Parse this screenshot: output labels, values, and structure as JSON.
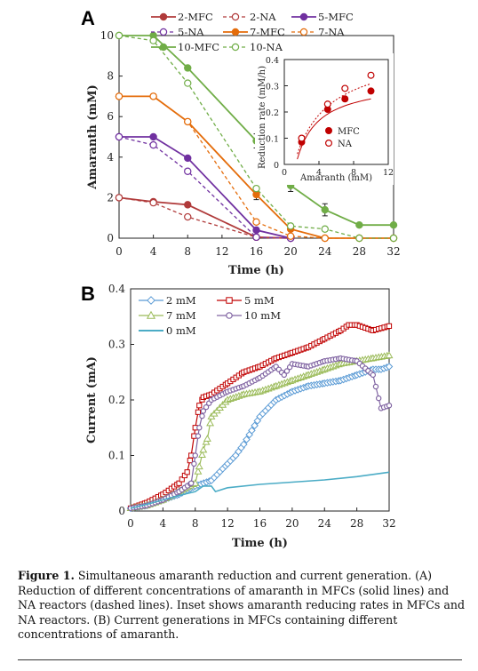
{
  "caption": {
    "label": "Figure 1.",
    "text": "Simultaneous amaranth reduction and current generation. (A) Reduction of different concentrations of amaranth in MFCs (solid lines) and NA reactors (dashed lines). Inset shows amaranth reducing rates in MFCs and NA reactors. (B) Current generations in MFCs containing different concentrations of amaranth."
  },
  "chart_data": [
    {
      "panel": "A",
      "type": "line",
      "xlabel": "Time (h)",
      "ylabel": "Amaranth (mM)",
      "xlim": [
        0,
        32
      ],
      "ylim": [
        0,
        10
      ],
      "xticks": [
        0,
        4,
        8,
        12,
        16,
        20,
        24,
        28,
        32
      ],
      "yticks": [
        0,
        2,
        4,
        6,
        8,
        10
      ],
      "legend_placement": "top",
      "series": [
        {
          "name": "2-MFC",
          "color": "#b03a3a",
          "style": "solid",
          "marker": "filled",
          "x": [
            0,
            4,
            8,
            16,
            20
          ],
          "y": [
            2.0,
            1.8,
            1.65,
            0.05,
            0.0
          ]
        },
        {
          "name": "2-NA",
          "color": "#b03a3a",
          "style": "dashed",
          "marker": "open",
          "x": [
            0,
            4,
            8,
            16,
            20
          ],
          "y": [
            2.0,
            1.75,
            1.05,
            0.05,
            0.0
          ]
        },
        {
          "name": "5-MFC",
          "color": "#7030a0",
          "style": "solid",
          "marker": "filled",
          "x": [
            0,
            4,
            8,
            16,
            20
          ],
          "y": [
            5.0,
            5.0,
            3.95,
            0.4,
            0.0
          ]
        },
        {
          "name": "5-NA",
          "color": "#7030a0",
          "style": "dashed",
          "marker": "open",
          "x": [
            0,
            4,
            8,
            16,
            20
          ],
          "y": [
            5.0,
            4.6,
            3.3,
            0.05,
            0.0
          ]
        },
        {
          "name": "7-MFC",
          "color": "#e46c0a",
          "style": "solid",
          "marker": "filled",
          "x": [
            0,
            4,
            8,
            16,
            20,
            24,
            28,
            32
          ],
          "y": [
            7.0,
            7.0,
            5.75,
            2.15,
            0.45,
            0.0,
            0.0,
            0.0
          ]
        },
        {
          "name": "7-NA",
          "color": "#e46c0a",
          "style": "dashed",
          "marker": "open",
          "x": [
            0,
            4,
            8,
            16,
            20,
            24,
            28,
            32
          ],
          "y": [
            7.0,
            7.0,
            5.75,
            0.8,
            0.1,
            0.0,
            0.0,
            0.0
          ]
        },
        {
          "name": "10-MFC",
          "color": "#70ad47",
          "style": "solid",
          "marker": "filled",
          "x": [
            0,
            4,
            8,
            16,
            20,
            24,
            28,
            32
          ],
          "y": [
            10.0,
            10.0,
            8.4,
            4.8,
            2.6,
            1.4,
            0.65,
            0.65
          ]
        },
        {
          "name": "10-NA",
          "color": "#70ad47",
          "style": "dashed",
          "marker": "open",
          "x": [
            0,
            4,
            8,
            16,
            20,
            24,
            28,
            32
          ],
          "y": [
            10.0,
            9.75,
            7.65,
            2.45,
            0.6,
            0.45,
            0.0,
            0.0
          ]
        }
      ],
      "error_bars": [
        {
          "series": "10-MFC",
          "x": 16,
          "err": 0.35
        },
        {
          "series": "10-MFC",
          "x": 20,
          "err": 0.3
        },
        {
          "series": "10-MFC",
          "x": 24,
          "err": 0.3
        },
        {
          "series": "7-MFC",
          "x": 16,
          "err": 0.25
        }
      ],
      "inset": {
        "type": "scatter",
        "xlabel": "Amaranth (mM)",
        "ylabel": "Reduction rate (mM/h)",
        "xlim": [
          0,
          12
        ],
        "ylim": [
          0,
          0.4
        ],
        "xticks": [
          0,
          4,
          8,
          12
        ],
        "yticks": [
          0,
          0.1,
          0.2,
          0.3,
          0.4
        ],
        "series": [
          {
            "name": "MFC",
            "color": "#c00000",
            "marker": "filled",
            "style": "solid",
            "x": [
              2,
              5,
              7,
              10
            ],
            "y": [
              0.085,
              0.21,
              0.25,
              0.28
            ]
          },
          {
            "name": "NA",
            "color": "#c00000",
            "marker": "open",
            "style": "dotted",
            "x": [
              2,
              5,
              7,
              10
            ],
            "y": [
              0.1,
              0.23,
              0.29,
              0.34
            ]
          }
        ]
      }
    },
    {
      "panel": "B",
      "type": "line",
      "xlabel": "Time (h)",
      "ylabel": "Current (mA)",
      "xlim": [
        0,
        32
      ],
      "ylim": [
        0,
        0.4
      ],
      "xticks": [
        0,
        4,
        8,
        12,
        16,
        20,
        24,
        28,
        32
      ],
      "yticks": [
        0,
        0.1,
        0.2,
        0.3,
        0.4
      ],
      "legend_placement": "top-left",
      "series": [
        {
          "name": "2 mM",
          "color": "#5b9bd5",
          "marker": "diamond-open",
          "x": [
            0,
            2,
            4,
            6,
            8,
            10,
            12,
            13,
            14,
            15,
            16,
            18,
            20,
            22,
            24,
            26,
            28,
            30,
            31,
            32
          ],
          "y": [
            0.005,
            0.01,
            0.02,
            0.03,
            0.045,
            0.055,
            0.085,
            0.1,
            0.12,
            0.145,
            0.17,
            0.2,
            0.215,
            0.225,
            0.23,
            0.235,
            0.245,
            0.255,
            0.255,
            0.26
          ]
        },
        {
          "name": "5 mM",
          "color": "#c00000",
          "marker": "square-open",
          "x": [
            0,
            2,
            4,
            6,
            7,
            7.5,
            8,
            8.5,
            9,
            10,
            12,
            14,
            16,
            18,
            20,
            22,
            24,
            26,
            27,
            28,
            30,
            32
          ],
          "y": [
            0.005,
            0.015,
            0.03,
            0.05,
            0.07,
            0.1,
            0.15,
            0.19,
            0.205,
            0.21,
            0.23,
            0.25,
            0.26,
            0.275,
            0.285,
            0.295,
            0.31,
            0.325,
            0.335,
            0.335,
            0.325,
            0.333
          ]
        },
        {
          "name": "7 mM",
          "color": "#9bbb59",
          "marker": "triangle-open",
          "x": [
            0,
            2,
            4,
            6,
            8,
            8.5,
            9,
            9.5,
            10,
            12,
            14,
            16,
            18,
            20,
            22,
            24,
            26,
            28,
            30,
            32
          ],
          "y": [
            0.005,
            0.01,
            0.02,
            0.035,
            0.05,
            0.08,
            0.11,
            0.13,
            0.17,
            0.2,
            0.21,
            0.215,
            0.225,
            0.235,
            0.245,
            0.255,
            0.265,
            0.27,
            0.275,
            0.28
          ]
        },
        {
          "name": "10 mM",
          "color": "#8064a2",
          "marker": "circle-open",
          "x": [
            0,
            2,
            4,
            6,
            7.5,
            8,
            8.5,
            9,
            10,
            12,
            14,
            16,
            18,
            19,
            20,
            22,
            24,
            26,
            28,
            30,
            31,
            32
          ],
          "y": [
            0.005,
            0.01,
            0.02,
            0.035,
            0.05,
            0.1,
            0.15,
            0.18,
            0.2,
            0.215,
            0.225,
            0.24,
            0.26,
            0.245,
            0.265,
            0.26,
            0.27,
            0.275,
            0.27,
            0.245,
            0.185,
            0.19
          ]
        },
        {
          "name": "0 mM",
          "color": "#4bacc6",
          "marker": "none",
          "x": [
            0,
            2,
            4,
            6,
            8,
            9,
            10,
            10.5,
            12,
            16,
            20,
            24,
            28,
            32
          ],
          "y": [
            0.005,
            0.012,
            0.02,
            0.028,
            0.035,
            0.045,
            0.045,
            0.035,
            0.042,
            0.048,
            0.052,
            0.056,
            0.062,
            0.07
          ]
        }
      ]
    }
  ],
  "panels": {
    "a": "A",
    "b": "B"
  }
}
